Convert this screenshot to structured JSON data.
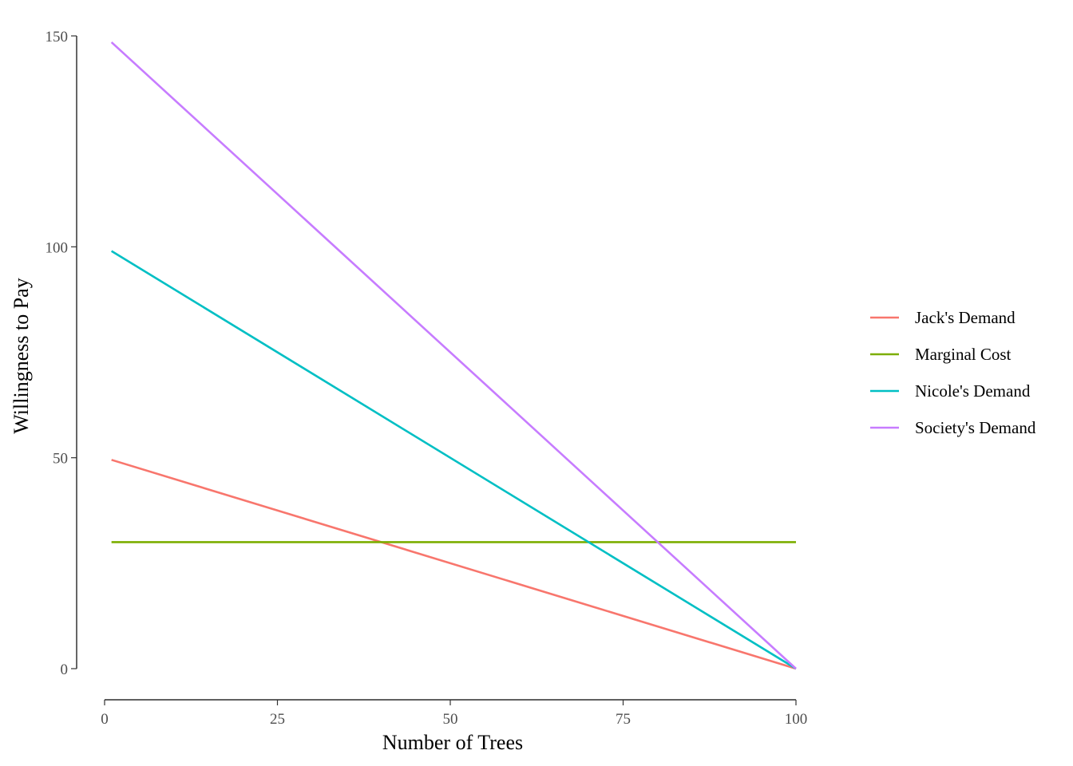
{
  "chart_data": {
    "type": "line",
    "title": "",
    "xlabel": "Number of Trees",
    "ylabel": "Willingness to Pay",
    "xlim": [
      0,
      100
    ],
    "ylim": [
      0,
      150
    ],
    "x_ticks": [
      0,
      25,
      50,
      75,
      100
    ],
    "y_ticks": [
      0,
      50,
      100,
      150
    ],
    "x_tick_labels": [
      "0",
      "25",
      "50",
      "75",
      "100"
    ],
    "y_tick_labels": [
      "0",
      "50",
      "100",
      "150"
    ],
    "grid": false,
    "legend_position": "right",
    "series": [
      {
        "name": "Jack's Demand",
        "color": "#F8766D",
        "x": [
          1,
          100
        ],
        "y": [
          49.5,
          0
        ]
      },
      {
        "name": "Marginal Cost",
        "color": "#7CAE00",
        "x": [
          1,
          100
        ],
        "y": [
          30,
          30
        ]
      },
      {
        "name": "Nicole's Demand",
        "color": "#00BFC4",
        "x": [
          1,
          100
        ],
        "y": [
          99,
          0
        ]
      },
      {
        "name": "Society's Demand",
        "color": "#C77CFF",
        "x": [
          1,
          100
        ],
        "y": [
          148.5,
          0
        ]
      }
    ]
  }
}
